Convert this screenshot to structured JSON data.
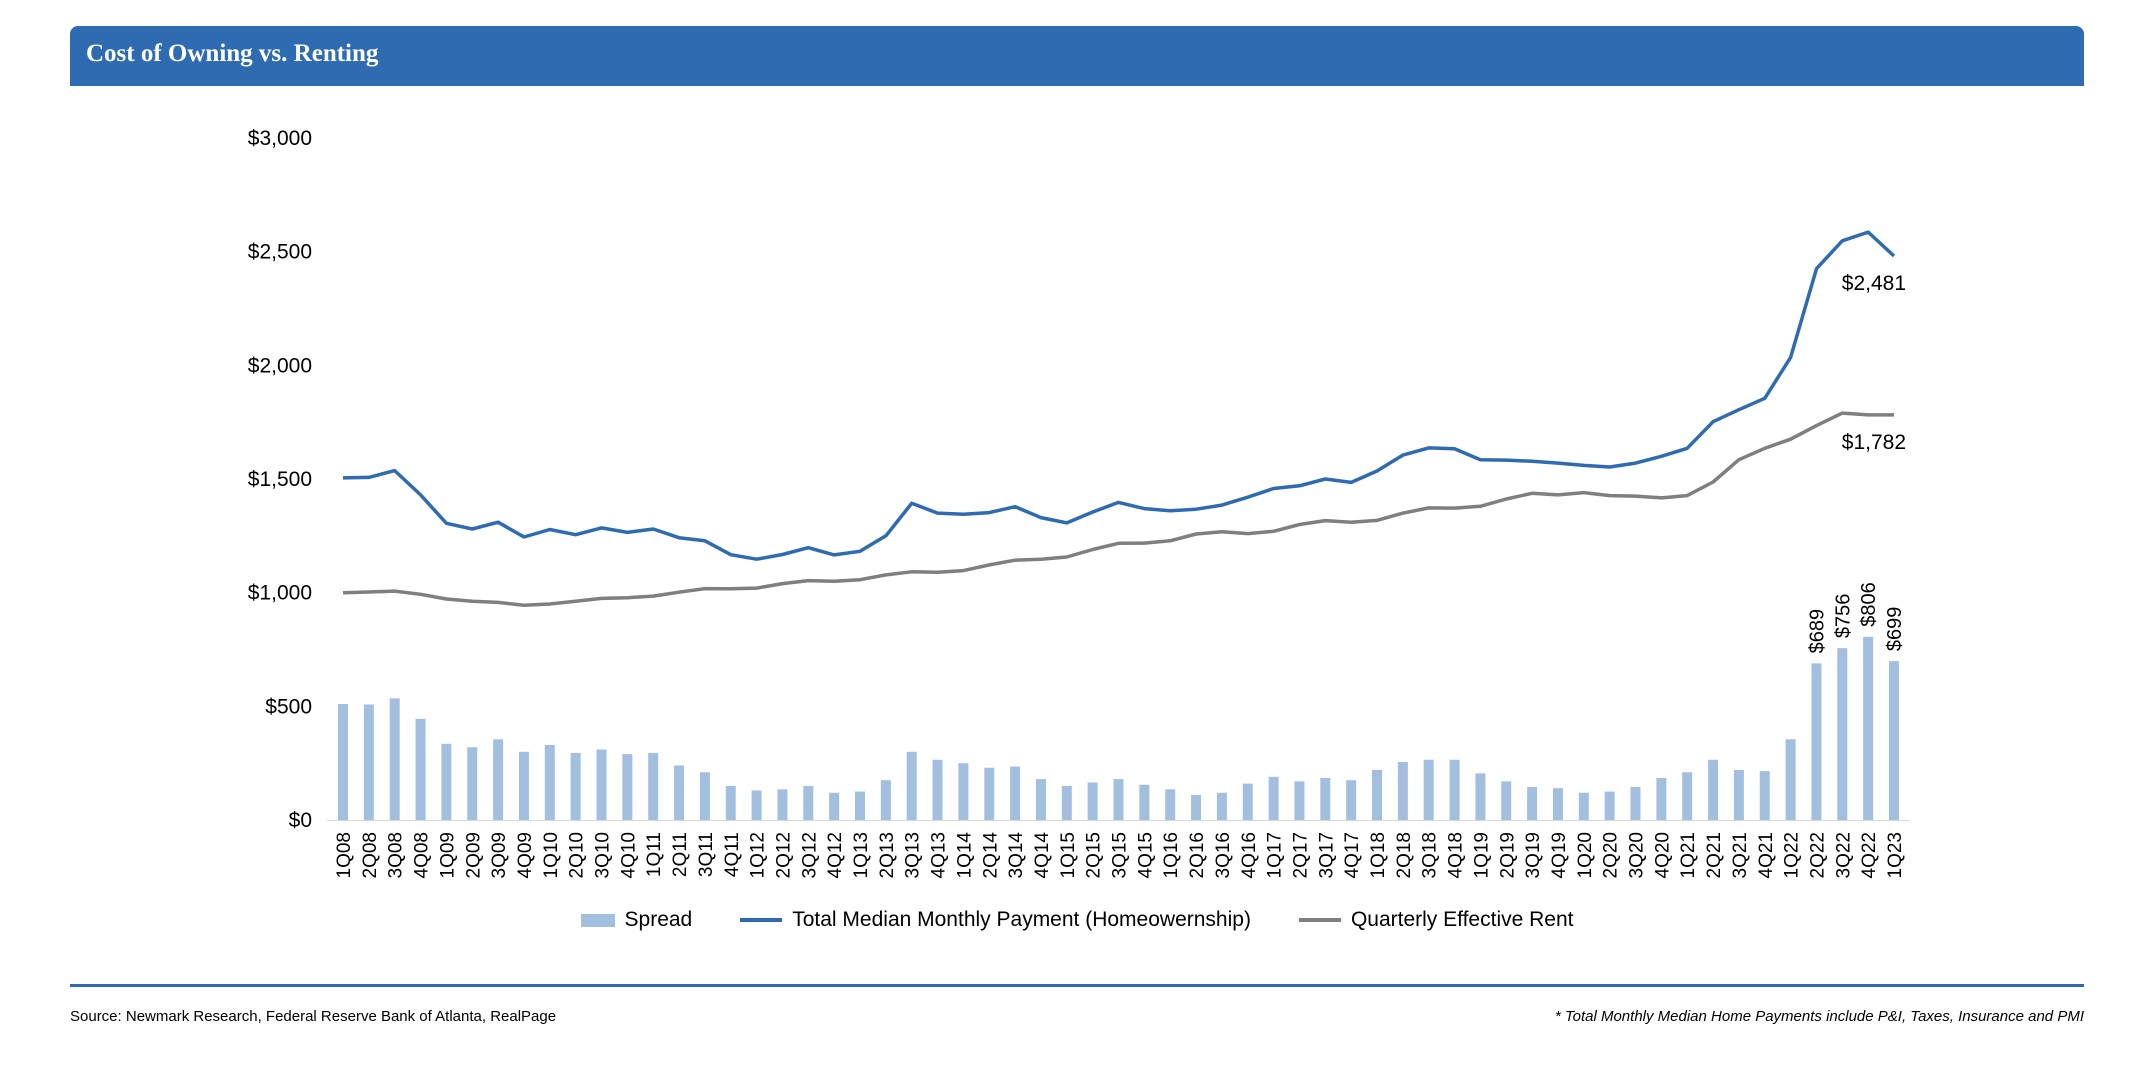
{
  "header": {
    "title": "Cost of Owning vs. Renting"
  },
  "footer": {
    "source": "Source: Newmark Research, Federal Reserve Bank of Atlanta, RealPage",
    "note": "* Total Monthly Median Home Payments include P&I, Taxes, Insurance and PMI"
  },
  "colors": {
    "header": "#2e6bb0",
    "owning": "#2e6bb0",
    "rent": "#7f7f7f",
    "spread": "#a3bfe0"
  },
  "chart_data": {
    "type": "bar",
    "title": "Cost of Owning vs. Renting",
    "ylim": [
      0,
      3000
    ],
    "yticks": [
      0,
      500,
      1000,
      1500,
      2000,
      2500,
      3000
    ],
    "ytick_labels": [
      "$0",
      "$500",
      "$1,000",
      "$1,500",
      "$2,000",
      "$2,500",
      "$3,000"
    ],
    "grid": false,
    "legend_position": "bottom",
    "categories": [
      "1Q08",
      "2Q08",
      "3Q08",
      "4Q08",
      "1Q09",
      "2Q09",
      "3Q09",
      "4Q09",
      "1Q10",
      "2Q10",
      "3Q10",
      "4Q10",
      "1Q11",
      "2Q11",
      "3Q11",
      "4Q11",
      "1Q12",
      "2Q12",
      "3Q12",
      "4Q12",
      "1Q13",
      "2Q13",
      "3Q13",
      "4Q13",
      "1Q14",
      "2Q14",
      "3Q14",
      "4Q14",
      "1Q15",
      "2Q15",
      "3Q15",
      "4Q15",
      "1Q16",
      "2Q16",
      "3Q16",
      "4Q16",
      "1Q17",
      "2Q17",
      "3Q17",
      "4Q17",
      "1Q18",
      "2Q18",
      "3Q18",
      "4Q18",
      "1Q19",
      "2Q19",
      "3Q19",
      "4Q19",
      "1Q20",
      "2Q20",
      "3Q20",
      "4Q20",
      "1Q21",
      "2Q21",
      "3Q21",
      "4Q21",
      "1Q22",
      "2Q22",
      "3Q22",
      "4Q22",
      "1Q23"
    ],
    "series": [
      {
        "name": "Spread",
        "type": "bar",
        "values": [
          510,
          508,
          535,
          445,
          335,
          320,
          355,
          300,
          330,
          295,
          310,
          290,
          295,
          240,
          210,
          150,
          130,
          135,
          150,
          120,
          125,
          175,
          300,
          265,
          250,
          230,
          235,
          180,
          150,
          165,
          180,
          155,
          135,
          110,
          120,
          160,
          190,
          170,
          185,
          175,
          220,
          255,
          265,
          265,
          205,
          170,
          145,
          140,
          120,
          125,
          145,
          185,
          210,
          265,
          220,
          215,
          355,
          689,
          756,
          806,
          699
        ]
      },
      {
        "name": "Total Median Monthly Payment (Homeowernship)",
        "type": "line",
        "values": [
          1505,
          1507,
          1537,
          1430,
          1305,
          1280,
          1310,
          1245,
          1278,
          1255,
          1285,
          1265,
          1280,
          1242,
          1228,
          1167,
          1147,
          1168,
          1198,
          1166,
          1182,
          1250,
          1393,
          1350,
          1345,
          1352,
          1378,
          1330,
          1307,
          1355,
          1397,
          1370,
          1360,
          1367,
          1385,
          1420,
          1458,
          1470,
          1500,
          1485,
          1535,
          1605,
          1637,
          1633,
          1585,
          1583,
          1578,
          1570,
          1560,
          1553,
          1570,
          1600,
          1635,
          1752,
          1805,
          1855,
          2035,
          2425,
          2548,
          2586,
          2481
        ]
      },
      {
        "name": "Quarterly Effective Rent",
        "type": "line",
        "values": [
          1000,
          1003,
          1007,
          993,
          972,
          962,
          957,
          945,
          950,
          962,
          975,
          978,
          985,
          1002,
          1018,
          1017,
          1020,
          1040,
          1053,
          1050,
          1057,
          1078,
          1092,
          1090,
          1097,
          1122,
          1143,
          1147,
          1157,
          1190,
          1217,
          1218,
          1228,
          1258,
          1268,
          1260,
          1270,
          1300,
          1317,
          1310,
          1318,
          1350,
          1373,
          1372,
          1380,
          1412,
          1437,
          1430,
          1440,
          1427,
          1425,
          1417,
          1427,
          1487,
          1585,
          1635,
          1675,
          1735,
          1790,
          1782,
          1782
        ]
      }
    ],
    "data_labels": [
      {
        "series": "Spread",
        "category": "2Q22",
        "text": "$689"
      },
      {
        "series": "Spread",
        "category": "3Q22",
        "text": "$756"
      },
      {
        "series": "Spread",
        "category": "4Q22",
        "text": "$806"
      },
      {
        "series": "Spread",
        "category": "1Q23",
        "text": "$699"
      },
      {
        "series": "Total Median Monthly Payment (Homeowernship)",
        "category": "1Q23",
        "text": "$2,481"
      },
      {
        "series": "Quarterly Effective Rent",
        "category": "1Q23",
        "text": "$1,782"
      }
    ]
  }
}
